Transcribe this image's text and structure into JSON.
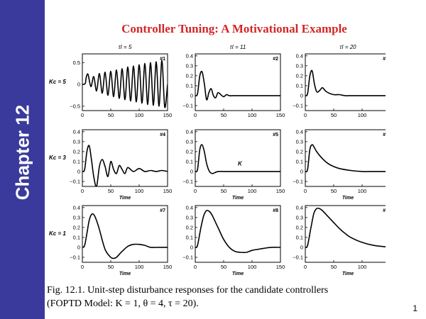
{
  "slide": {
    "sidebar_label": "Chapter 12",
    "title": "Controller Tuning:  A Motivational Example",
    "caption_line1": "Fig. 12.1. Unit-step disturbance responses for the candidate controllers",
    "caption_line2": "(FOPTD Model: K = 1, θ = 4, τ = 20).",
    "page_number": "1",
    "colors": {
      "sidebar": "#3a3a9c",
      "title": "#d32626",
      "curve": "#000000"
    }
  },
  "column_headers": [
    "τI = 5",
    "τI = 11",
    "τI = 20"
  ],
  "row_headers": [
    "Kc = 5",
    "Kc = 3",
    "Kc = 1"
  ],
  "chart_data": [
    {
      "panel": "#1",
      "type": "line",
      "xlabel": "",
      "ylabel": "",
      "xlim": [
        0,
        150
      ],
      "ylim": [
        -0.6,
        0.7
      ],
      "xticks": [
        0,
        50,
        100,
        150
      ],
      "yticks": [
        -0.5,
        0,
        0.5
      ],
      "x": [
        0,
        5,
        7,
        10,
        15,
        20,
        25,
        30,
        35,
        40,
        45,
        50,
        55,
        60,
        65,
        70,
        75,
        80,
        85,
        90,
        95,
        100,
        105,
        110,
        115,
        120,
        125,
        130,
        135,
        140,
        145,
        150
      ],
      "y": [
        0,
        0.02,
        0.17,
        0.23,
        -0.05,
        0.18,
        -0.15,
        0.25,
        -0.2,
        0.28,
        -0.25,
        0.3,
        -0.28,
        0.33,
        -0.32,
        0.36,
        -0.35,
        0.4,
        -0.38,
        0.42,
        -0.4,
        0.45,
        -0.43,
        0.48,
        -0.46,
        0.5,
        -0.48,
        0.52,
        -0.5,
        0.55,
        -0.52,
        0.0
      ]
    },
    {
      "panel": "#2",
      "type": "line",
      "xlabel": "",
      "ylabel": "",
      "xlim": [
        0,
        150
      ],
      "ylim": [
        -0.15,
        0.42
      ],
      "xticks": [
        0,
        50,
        100,
        150
      ],
      "yticks": [
        -0.1,
        0,
        0.1,
        0.2,
        0.3,
        0.4
      ],
      "x": [
        0,
        4,
        8,
        12,
        16,
        20,
        24,
        28,
        32,
        36,
        40,
        45,
        50,
        55,
        60,
        70,
        80,
        90,
        100,
        120,
        150
      ],
      "y": [
        0,
        0.02,
        0.2,
        0.24,
        0.12,
        -0.04,
        0.03,
        0.07,
        0.0,
        -0.02,
        0.03,
        0.01,
        -0.01,
        0.01,
        0.0,
        0.0,
        0.0,
        0.0,
        0.0,
        0.0,
        0.0
      ]
    },
    {
      "panel": "#3",
      "type": "line",
      "xlabel": "",
      "ylabel": "",
      "xlim": [
        0,
        150
      ],
      "ylim": [
        -0.15,
        0.42
      ],
      "xticks": [
        0,
        50,
        100,
        150
      ],
      "yticks": [
        -0.1,
        0,
        0.1,
        0.2,
        0.3,
        0.4
      ],
      "x": [
        0,
        4,
        8,
        12,
        16,
        20,
        25,
        30,
        35,
        40,
        50,
        60,
        70,
        80,
        100,
        120,
        150
      ],
      "y": [
        0,
        0.02,
        0.2,
        0.25,
        0.12,
        0.04,
        0.05,
        0.08,
        0.05,
        0.03,
        0.01,
        0.01,
        0.0,
        0.0,
        0.0,
        0.0,
        0.0
      ]
    },
    {
      "panel": "#4",
      "type": "line",
      "xlabel": "Time",
      "ylabel": "",
      "xlim": [
        0,
        150
      ],
      "ylim": [
        -0.15,
        0.42
      ],
      "xticks": [
        0,
        50,
        100,
        150
      ],
      "yticks": [
        -0.1,
        0,
        0.1,
        0.2,
        0.3,
        0.4
      ],
      "x": [
        0,
        4,
        8,
        12,
        16,
        20,
        25,
        30,
        35,
        40,
        45,
        50,
        55,
        60,
        65,
        70,
        75,
        80,
        90,
        100,
        110,
        120,
        130,
        140,
        150
      ],
      "y": [
        0,
        0.02,
        0.2,
        0.26,
        0.12,
        -0.05,
        -0.15,
        0.05,
        0.12,
        0.05,
        -0.05,
        0.1,
        0.02,
        -0.02,
        0.06,
        0.02,
        -0.02,
        0.04,
        0.0,
        0.03,
        0.0,
        0.01,
        0.0,
        0.01,
        0.0
      ]
    },
    {
      "panel": "#5",
      "type": "line",
      "xlabel": "Time",
      "ylabel": "",
      "xlim": [
        0,
        150
      ],
      "ylim": [
        -0.15,
        0.42
      ],
      "xticks": [
        0,
        50,
        100,
        150
      ],
      "yticks": [
        -0.1,
        0,
        0.1,
        0.2,
        0.3,
        0.4
      ],
      "x": [
        0,
        4,
        8,
        12,
        16,
        20,
        25,
        30,
        35,
        40,
        50,
        60,
        80,
        100,
        150
      ],
      "y": [
        0,
        0.02,
        0.22,
        0.27,
        0.2,
        0.08,
        0.0,
        -0.02,
        -0.01,
        0.0,
        0.0,
        0.0,
        0.0,
        0.0,
        0.0
      ],
      "annotation": "K"
    },
    {
      "panel": "#6",
      "type": "line",
      "xlabel": "Time",
      "ylabel": "",
      "xlim": [
        0,
        150
      ],
      "ylim": [
        -0.15,
        0.42
      ],
      "xticks": [
        0,
        50,
        100,
        150
      ],
      "yticks": [
        -0.1,
        0,
        0.1,
        0.2,
        0.3,
        0.4
      ],
      "x": [
        0,
        4,
        8,
        12,
        16,
        20,
        30,
        40,
        50,
        60,
        80,
        100,
        120,
        150
      ],
      "y": [
        0,
        0.02,
        0.22,
        0.27,
        0.24,
        0.2,
        0.13,
        0.08,
        0.05,
        0.03,
        0.01,
        0.0,
        0.0,
        0.0
      ]
    },
    {
      "panel": "#7",
      "type": "line",
      "xlabel": "Time",
      "ylabel": "",
      "xlim": [
        0,
        150
      ],
      "ylim": [
        -0.15,
        0.42
      ],
      "xticks": [
        0,
        50,
        100,
        150
      ],
      "yticks": [
        -0.1,
        0,
        0.1,
        0.2,
        0.3,
        0.4
      ],
      "x": [
        0,
        4,
        8,
        12,
        16,
        20,
        25,
        30,
        40,
        50,
        55,
        60,
        70,
        80,
        90,
        100,
        110,
        120,
        135,
        150
      ],
      "y": [
        0,
        0.02,
        0.14,
        0.27,
        0.33,
        0.33,
        0.27,
        0.18,
        -0.02,
        -0.1,
        -0.11,
        -0.1,
        -0.04,
        0.01,
        0.03,
        0.03,
        0.02,
        0.0,
        0.0,
        0.0
      ]
    },
    {
      "panel": "#8",
      "type": "line",
      "xlabel": "Time",
      "ylabel": "",
      "xlim": [
        0,
        150
      ],
      "ylim": [
        -0.15,
        0.42
      ],
      "xticks": [
        0,
        50,
        100,
        150
      ],
      "yticks": [
        -0.1,
        0,
        0.1,
        0.2,
        0.3,
        0.4
      ],
      "x": [
        0,
        4,
        10,
        15,
        20,
        25,
        30,
        40,
        50,
        60,
        70,
        80,
        90,
        100,
        110,
        120,
        135,
        150
      ],
      "y": [
        0,
        0.02,
        0.2,
        0.32,
        0.37,
        0.36,
        0.32,
        0.2,
        0.08,
        0.0,
        -0.04,
        -0.05,
        -0.05,
        -0.03,
        -0.02,
        -0.01,
        0.0,
        0.0
      ]
    },
    {
      "panel": "#9",
      "type": "line",
      "xlabel": "Time",
      "ylabel": "",
      "xlim": [
        0,
        150
      ],
      "ylim": [
        -0.15,
        0.42
      ],
      "xticks": [
        0,
        50,
        100,
        150
      ],
      "yticks": [
        -0.1,
        0,
        0.1,
        0.2,
        0.3,
        0.4
      ],
      "x": [
        0,
        4,
        10,
        15,
        20,
        25,
        30,
        40,
        50,
        60,
        70,
        80,
        100,
        120,
        150
      ],
      "y": [
        0,
        0.02,
        0.2,
        0.34,
        0.39,
        0.39,
        0.37,
        0.31,
        0.25,
        0.19,
        0.14,
        0.1,
        0.05,
        0.02,
        0.0
      ]
    }
  ]
}
